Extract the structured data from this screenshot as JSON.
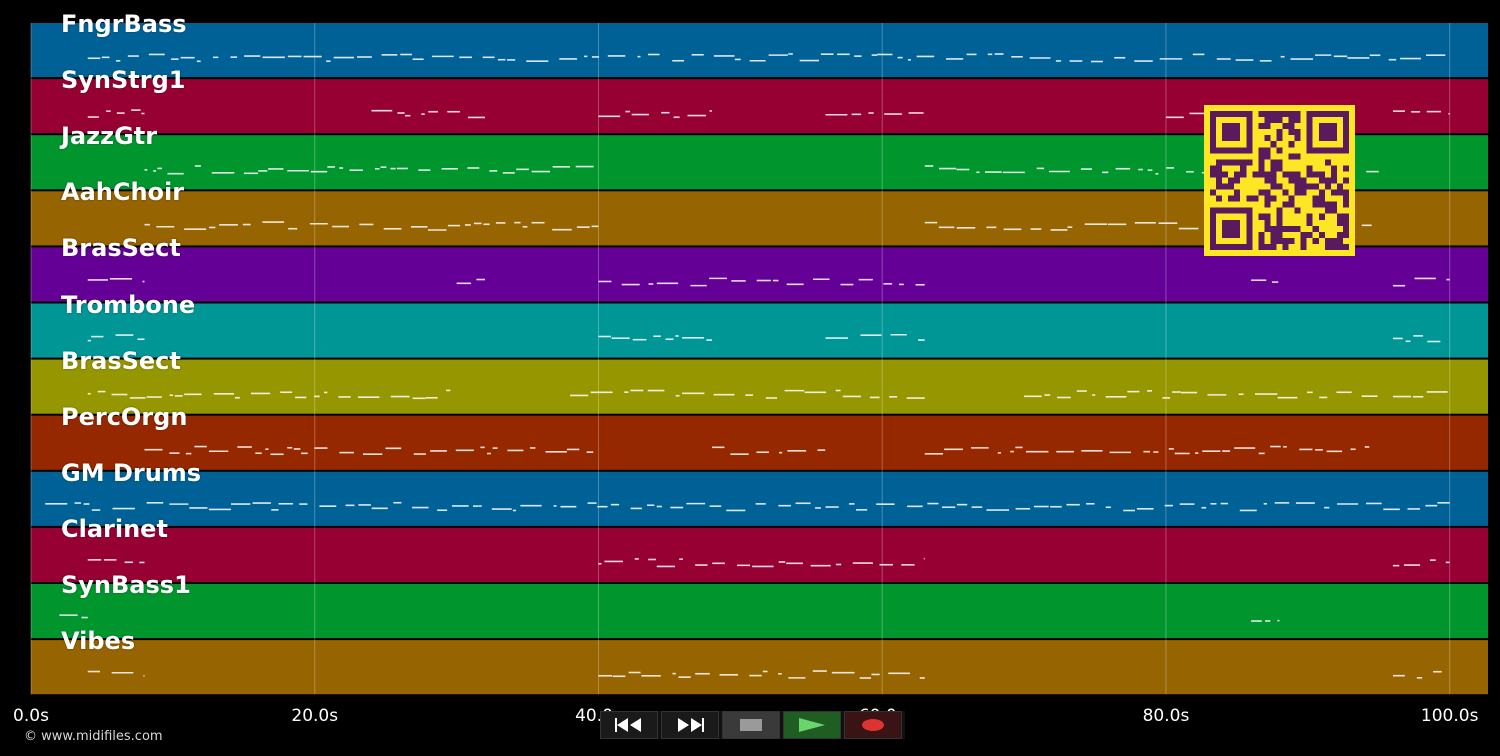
{
  "tracks": [
    {
      "name": "FngrBass",
      "color": "#006196"
    },
    {
      "name": "SynStrg1",
      "color": "#960032"
    },
    {
      "name": "JazzGtr",
      "color": "#00962d"
    },
    {
      "name": "AahChoir",
      "color": "#966400"
    },
    {
      "name": "BrasSect",
      "color": "#640096"
    },
    {
      "name": "Trombone",
      "color": "#009696"
    },
    {
      "name": "BrasSect",
      "color": "#969600"
    },
    {
      "name": "PercOrgn",
      "color": "#962800"
    },
    {
      "name": "GM Drums",
      "color": "#006196"
    },
    {
      "name": "Clarinet",
      "color": "#960032"
    },
    {
      "name": "SynBass1",
      "color": "#00962d"
    },
    {
      "name": "Vibes",
      "color": "#966400"
    }
  ],
  "timeline": {
    "ticks": [
      "0.0s",
      "20.0s",
      "40.0s",
      "60.0s",
      "80.0s",
      "100.0s"
    ]
  },
  "copyright": "© www.midifiles.com",
  "transport": {
    "rewind": "rewind-icon",
    "fast_forward": "fast-forward-icon",
    "stop": "stop-icon",
    "play": "play-icon",
    "record": "record-icon"
  },
  "qr_colors": {
    "fg": "#5a1a5e",
    "bg": "#fde725"
  }
}
